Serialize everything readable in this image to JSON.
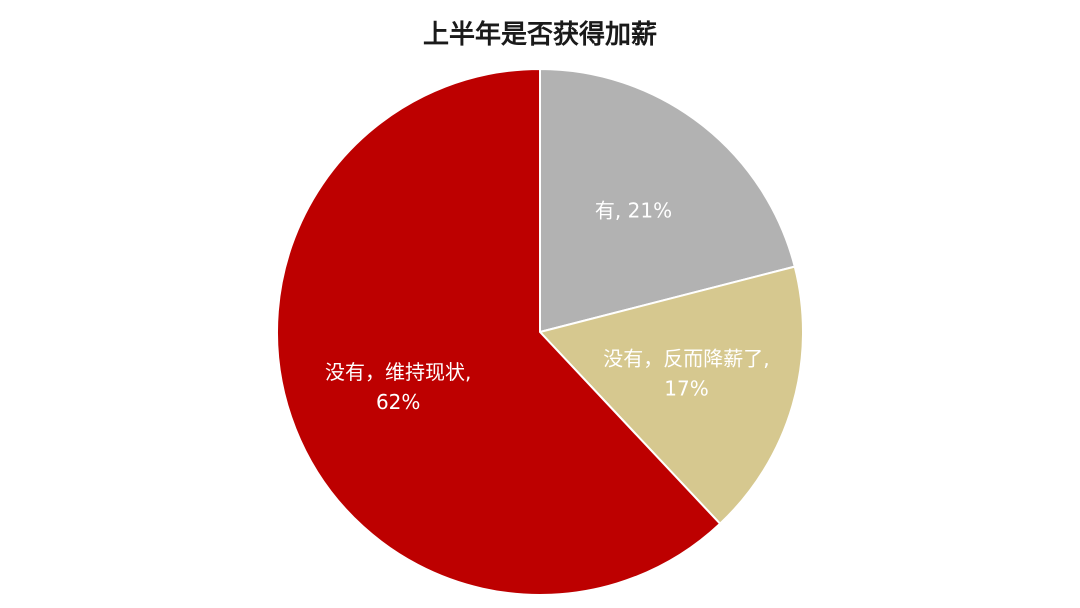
{
  "chart_data": {
    "type": "pie",
    "title": "上半年是否获得加薪",
    "slices": [
      {
        "name": "有",
        "value": 21,
        "label_lines": [
          "有, 21%"
        ],
        "color": "#b2b2b2"
      },
      {
        "name": "没有，反而降薪了",
        "value": 17,
        "label_lines": [
          "没有，反而降薪了,",
          "17%"
        ],
        "color": "#d6c88f"
      },
      {
        "name": "没有，维持现状",
        "value": 62,
        "label_lines": [
          "没有，维持现状,",
          "62%"
        ],
        "color": "#bd0000"
      }
    ]
  }
}
